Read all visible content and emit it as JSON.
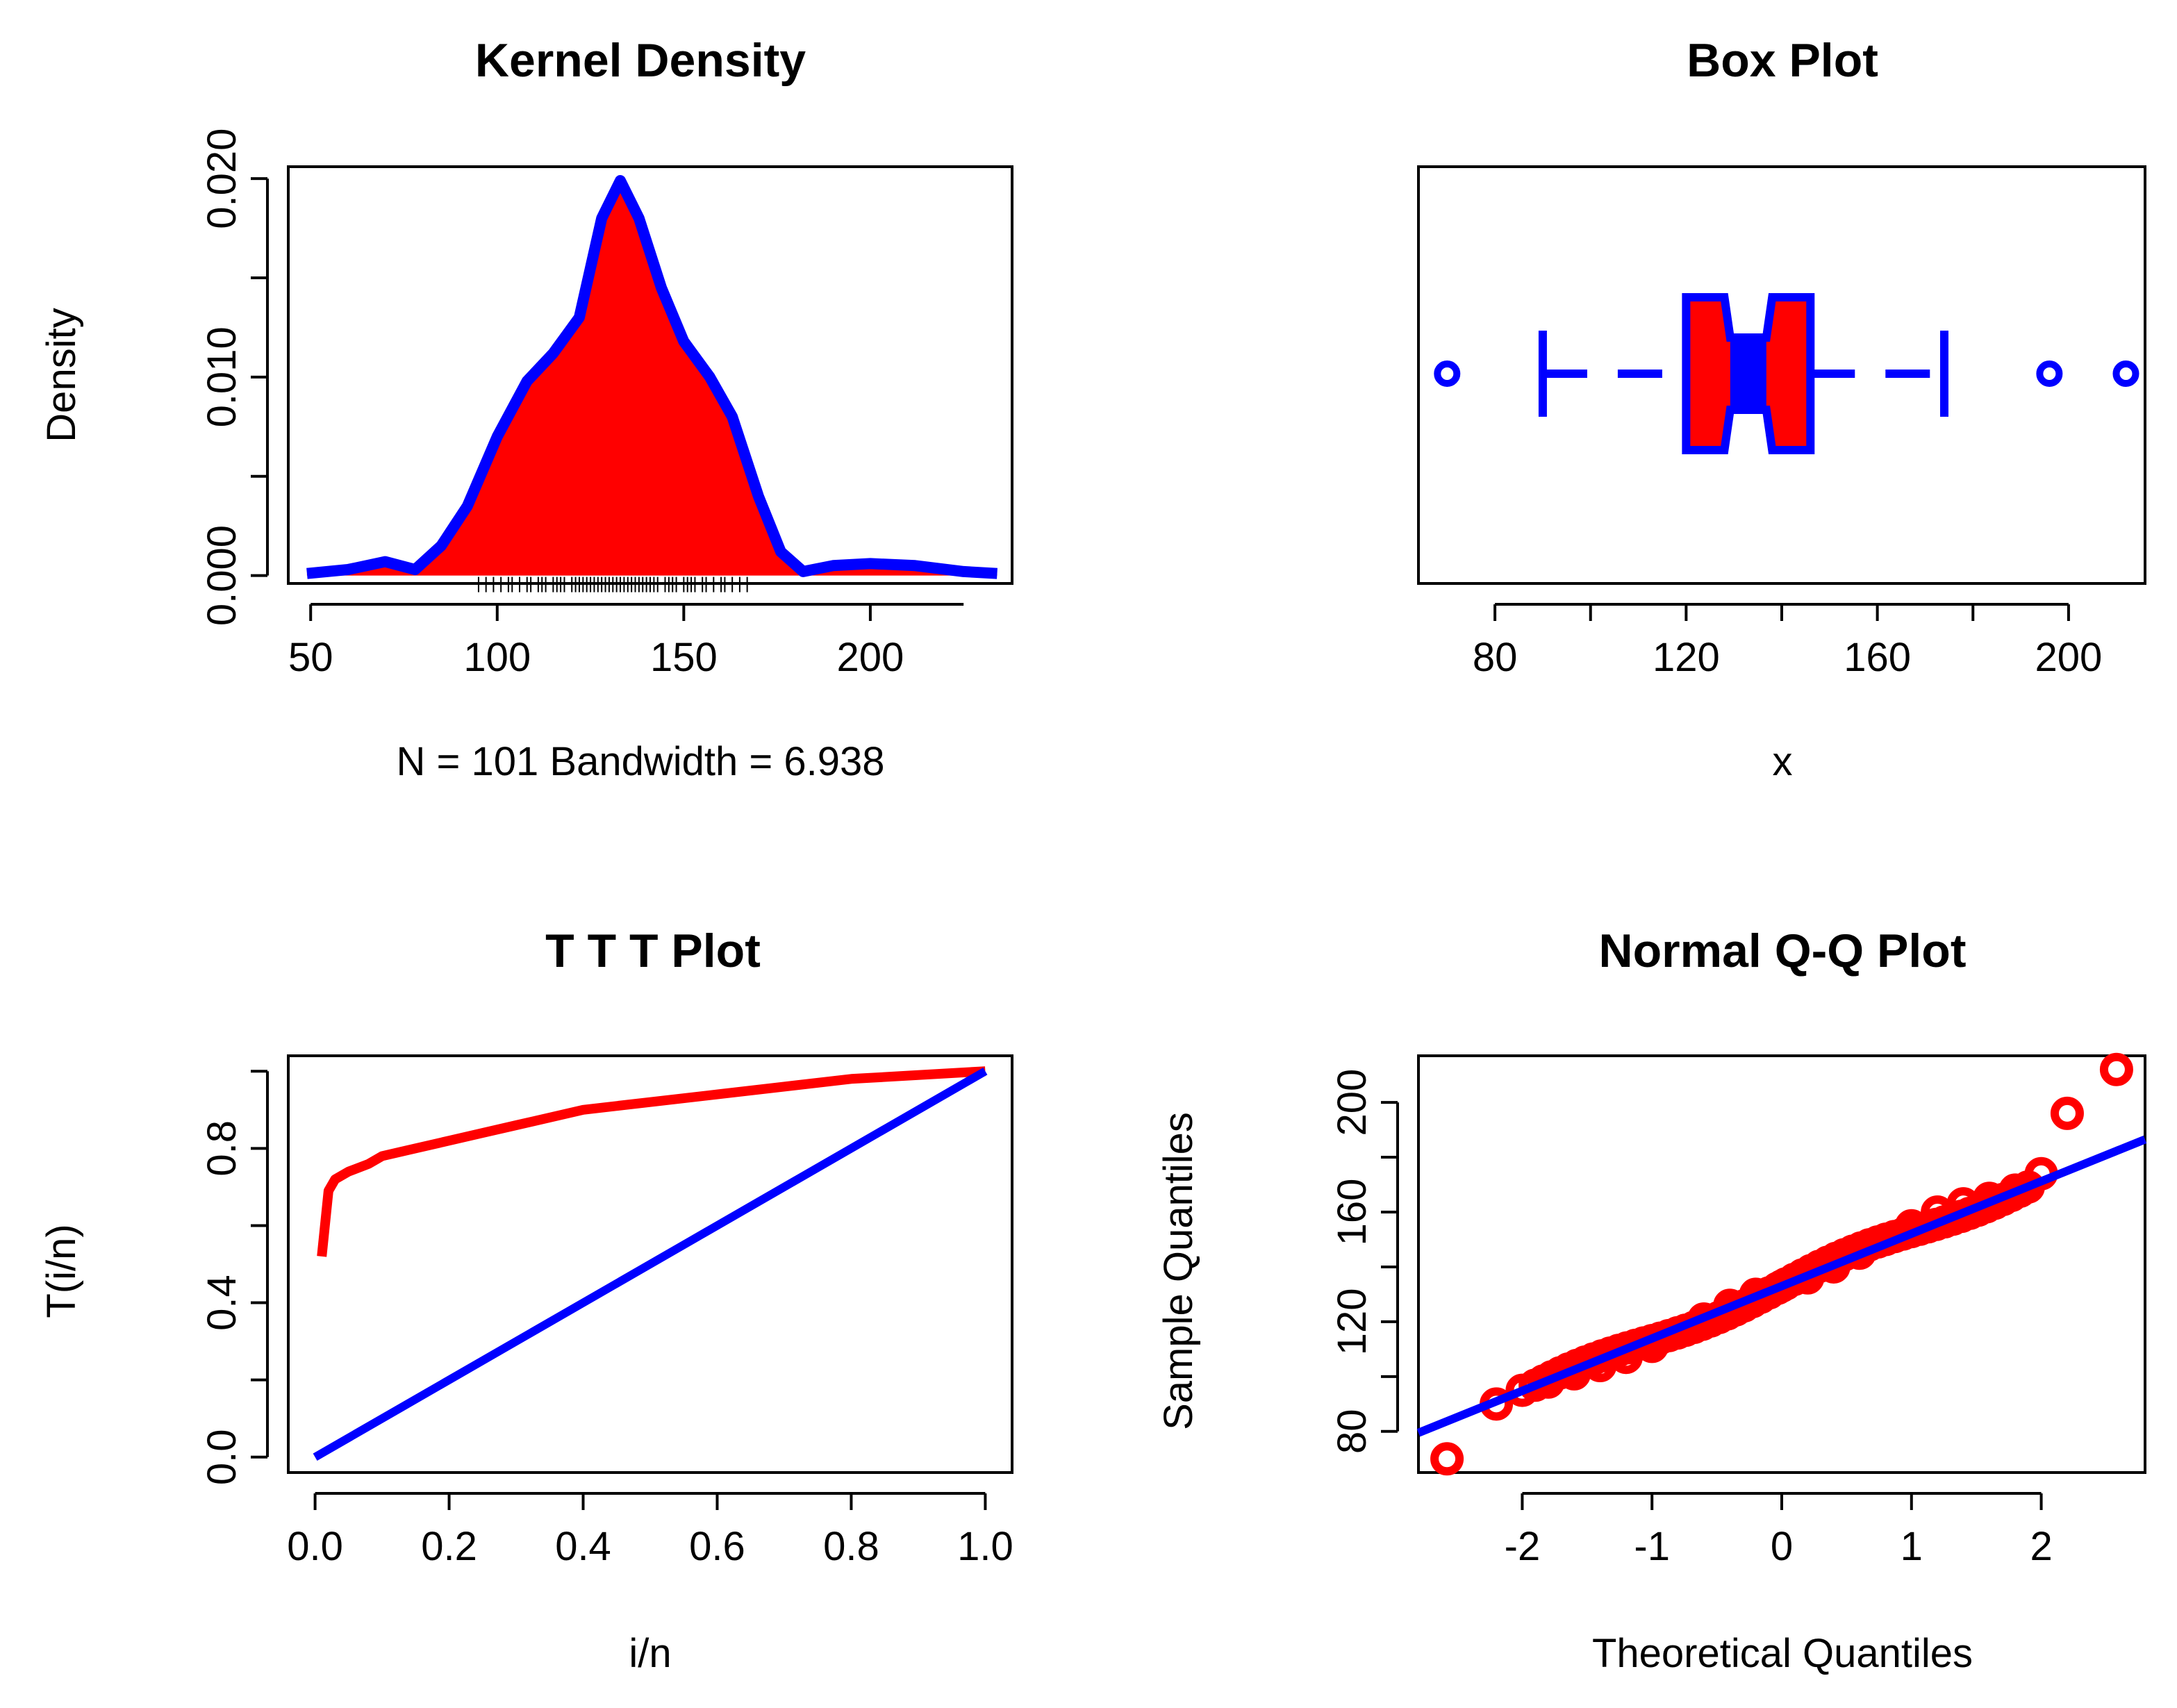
{
  "chart_data": [
    {
      "type": "area",
      "title": "Kernel Density",
      "xlabel": "N = 101   Bandwidth = 6.938",
      "ylabel": "Density",
      "xlim": [
        44,
        238
      ],
      "ylim": [
        -0.0004,
        0.0206
      ],
      "x_ticks": [
        "50",
        "100",
        "150",
        "200"
      ],
      "x_tick_values": [
        50,
        100,
        150,
        200
      ],
      "y_ticks": [
        "0.000",
        "0.010",
        "0.020"
      ],
      "y_tick_values": [
        0,
        0.005,
        0.01,
        0.015,
        0.02
      ],
      "y_labeled_ticks": [
        0,
        0.01,
        0.02
      ],
      "x": [
        49,
        60,
        70,
        78,
        85,
        92,
        100,
        108,
        115,
        122,
        128,
        133,
        138,
        144,
        150,
        157,
        163,
        170,
        176,
        182,
        190,
        200,
        212,
        225,
        234
      ],
      "y": [
        0.0001,
        0.0003,
        0.0007,
        0.0003,
        0.0015,
        0.0035,
        0.007,
        0.0098,
        0.0112,
        0.013,
        0.018,
        0.0199,
        0.018,
        0.0145,
        0.0118,
        0.01,
        0.008,
        0.004,
        0.0012,
        0.0002,
        0.0005,
        0.0006,
        0.0005,
        0.0002,
        0.0001
      ],
      "rug": [
        95,
        97,
        99,
        101,
        103,
        104,
        106,
        108,
        109,
        111,
        112,
        113,
        115,
        116,
        117,
        118,
        120,
        121,
        122,
        123,
        124,
        125,
        126,
        127,
        128,
        129,
        130,
        131,
        132,
        133,
        134,
        135,
        136,
        137,
        138,
        139,
        140,
        141,
        142,
        143,
        145,
        146,
        147,
        148,
        150,
        151,
        152,
        153,
        155,
        156,
        158,
        160,
        161,
        163,
        165,
        167
      ],
      "fill_color": "#ff0000",
      "line_color": "#0000ff"
    },
    {
      "type": "box",
      "title": "Box Plot",
      "xlabel": "x",
      "xlim": [
        64,
        216
      ],
      "x_ticks": [
        "80",
        "120",
        "160",
        "200"
      ],
      "x_tick_values": [
        80,
        100,
        120,
        140,
        160,
        180,
        200
      ],
      "x_labeled_ticks": [
        80,
        120,
        160,
        200
      ],
      "whisker_low": 90,
      "q1": 120,
      "median": 133,
      "q3": 146,
      "whisker_high": 174,
      "notch_low": 128,
      "notch_high": 138,
      "outliers": [
        70,
        196,
        212
      ],
      "fill_color": "#ff0000",
      "line_color": "#0000ff"
    },
    {
      "type": "line",
      "title": "T T T Plot",
      "xlabel": "i/n",
      "ylabel": "T(i/n)",
      "xlim": [
        -0.04,
        1.04
      ],
      "ylim": [
        -0.04,
        1.04
      ],
      "x_ticks": [
        "0.0",
        "0.2",
        "0.4",
        "0.6",
        "0.8",
        "1.0"
      ],
      "x_tick_values": [
        0,
        0.2,
        0.4,
        0.6,
        0.8,
        1.0
      ],
      "y_ticks": [
        "0.0",
        "0.4",
        "0.8"
      ],
      "y_tick_values": [
        0,
        0.2,
        0.4,
        0.6,
        0.8,
        1.0
      ],
      "y_labeled_ticks": [
        0,
        0.4,
        0.8
      ],
      "series": [
        {
          "color": "#ff0000",
          "x": [
            0.01,
            0.02,
            0.03,
            0.05,
            0.08,
            0.1,
            0.15,
            0.2,
            0.25,
            0.3,
            0.35,
            0.4,
            0.5,
            0.6,
            0.7,
            0.8,
            0.9,
            1.0
          ],
          "y": [
            0.52,
            0.69,
            0.72,
            0.74,
            0.76,
            0.78,
            0.8,
            0.82,
            0.84,
            0.86,
            0.88,
            0.9,
            0.92,
            0.94,
            0.96,
            0.98,
            0.99,
            1.0
          ]
        },
        {
          "color": "#0000ff",
          "x": [
            0,
            1
          ],
          "y": [
            0,
            1
          ]
        }
      ]
    },
    {
      "type": "scatter",
      "title": "Normal Q-Q Plot",
      "xlabel": "Theoretical Quantiles",
      "ylabel": "Sample Quantiles",
      "xlim": [
        -2.8,
        2.8
      ],
      "ylim": [
        65,
        217
      ],
      "x_ticks": [
        "-2",
        "-1",
        "0",
        "1",
        "2"
      ],
      "x_tick_values": [
        -2,
        -1,
        0,
        1,
        2
      ],
      "y_ticks": [
        "80",
        "120",
        "160",
        "200"
      ],
      "y_tick_values": [
        80,
        100,
        120,
        140,
        160,
        180,
        200
      ],
      "y_labeled_ticks": [
        80,
        120,
        160,
        200
      ],
      "points_x": [
        -2.58,
        -2.2,
        -2.0,
        -1.8,
        -1.6,
        -1.4,
        -1.2,
        -1.0,
        -0.8,
        -0.6,
        -0.4,
        -0.2,
        0.0,
        0.2,
        0.4,
        0.6,
        0.8,
        1.0,
        1.2,
        1.4,
        1.6,
        1.8,
        2.0,
        2.2,
        2.58
      ],
      "points_y": [
        70,
        90,
        95,
        98,
        101,
        104,
        107,
        111,
        116,
        121,
        126,
        130,
        133,
        136,
        140,
        145,
        150,
        155,
        160,
        163,
        165,
        168,
        174,
        196,
        212
      ],
      "line_x": [
        -2.8,
        2.8
      ],
      "line_y": [
        79.5,
        186.5
      ],
      "point_color": "#ff0000",
      "line_color": "#0000ff"
    }
  ]
}
